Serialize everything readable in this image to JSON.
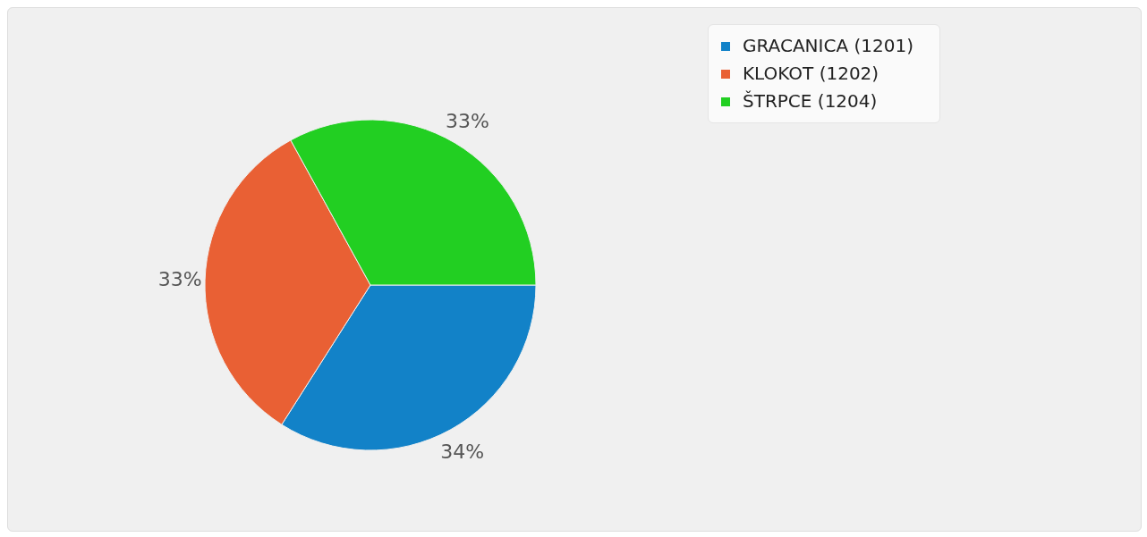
{
  "chart_data": {
    "type": "pie",
    "categories": [
      "GRACANICA (1201)",
      "KLOKOT (1202)",
      "ŠTRPCE (1204)"
    ],
    "values": [
      34,
      33,
      33
    ],
    "colors": [
      "#1282c8",
      "#e96034",
      "#22cf22"
    ],
    "value_labels": [
      "34%",
      "33%",
      "33%"
    ],
    "legend": "top right"
  }
}
